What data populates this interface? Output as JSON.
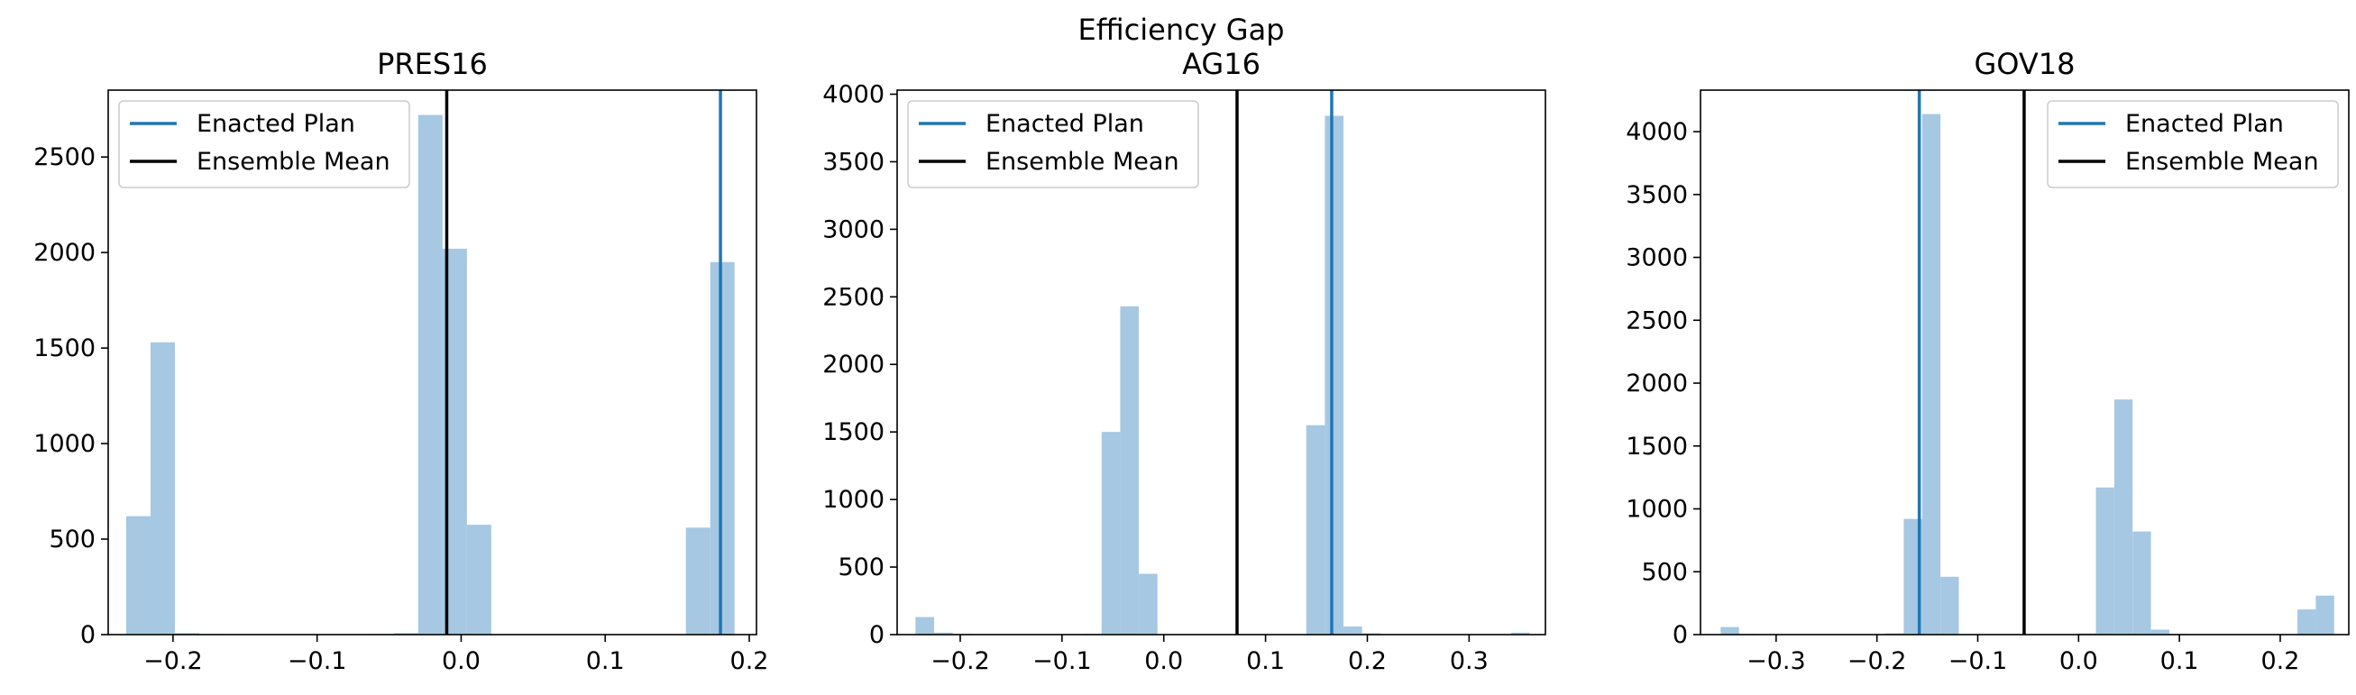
{
  "suptitle": "Efficiency Gap",
  "colors": {
    "enacted": "#1f77b4",
    "mean": "#000000",
    "hist": "#a6c8e2"
  },
  "legend": {
    "enacted_label": "Enacted Plan",
    "mean_label": "Ensemble Mean"
  },
  "chart_data": [
    {
      "type": "bar",
      "title": "PRES16",
      "xlim": [
        -0.245,
        0.205
      ],
      "ylim": [
        0,
        2850
      ],
      "xticks": [
        -0.2,
        -0.1,
        0.0,
        0.1,
        0.2
      ],
      "xtick_labels": [
        "−0.2",
        "−0.1",
        "0.0",
        "0.1",
        "0.2"
      ],
      "yticks": [
        0,
        500,
        1000,
        1500,
        2000,
        2500
      ],
      "ytick_labels": [
        "0",
        "500",
        "1000",
        "1500",
        "2000",
        "2500"
      ],
      "bin_width": 0.0169,
      "bins": [
        {
          "x": -0.2325,
          "v": 620
        },
        {
          "x": -0.2156,
          "v": 1530
        },
        {
          "x": -0.1987,
          "v": 8
        },
        {
          "x": -0.1818,
          "v": 3
        },
        {
          "x": -0.0636,
          "v": 3
        },
        {
          "x": -0.0467,
          "v": 8
        },
        {
          "x": -0.0298,
          "v": 2720
        },
        {
          "x": -0.0129,
          "v": 2020
        },
        {
          "x": 0.004,
          "v": 575
        },
        {
          "x": 0.156,
          "v": 560
        },
        {
          "x": 0.1729,
          "v": 1950
        }
      ],
      "enacted_plan": 0.18,
      "ensemble_mean": -0.01,
      "legend_position": "upper left"
    },
    {
      "type": "bar",
      "title": "AG16",
      "xlim": [
        -0.262,
        0.375
      ],
      "ylim": [
        0,
        4030
      ],
      "xticks": [
        -0.2,
        -0.1,
        0.0,
        0.1,
        0.2,
        0.3
      ],
      "xtick_labels": [
        "−0.2",
        "−0.1",
        "0.0",
        "0.1",
        "0.2",
        "0.3"
      ],
      "yticks": [
        0,
        500,
        1000,
        1500,
        2000,
        2500,
        3000,
        3500,
        4000
      ],
      "ytick_labels": [
        "0",
        "500",
        "1000",
        "1500",
        "2000",
        "2500",
        "3000",
        "3500",
        "4000"
      ],
      "bin_width": 0.0183,
      "bins": [
        {
          "x": -0.244,
          "v": 130
        },
        {
          "x": -0.2257,
          "v": 15
        },
        {
          "x": -0.2074,
          "v": 5
        },
        {
          "x": -0.0794,
          "v": 5
        },
        {
          "x": -0.0611,
          "v": 1500
        },
        {
          "x": -0.0428,
          "v": 2430
        },
        {
          "x": -0.0245,
          "v": 450
        },
        {
          "x": 0.14,
          "v": 1550
        },
        {
          "x": 0.1583,
          "v": 3840
        },
        {
          "x": 0.1766,
          "v": 60
        },
        {
          "x": 0.1949,
          "v": 10
        },
        {
          "x": 0.3412,
          "v": 15
        }
      ],
      "enacted_plan": 0.165,
      "ensemble_mean": 0.072,
      "legend_position": "upper left"
    },
    {
      "type": "bar",
      "title": "GOV18",
      "xlim": [
        -0.375,
        0.268
      ],
      "ylim": [
        0,
        4330
      ],
      "xticks": [
        -0.3,
        -0.2,
        -0.1,
        0.0,
        0.1,
        0.2
      ],
      "xtick_labels": [
        "−0.3",
        "−0.2",
        "−0.1",
        "0.0",
        "0.1",
        "0.2"
      ],
      "yticks": [
        0,
        500,
        1000,
        1500,
        2000,
        2500,
        3000,
        3500,
        4000
      ],
      "ytick_labels": [
        "0",
        "500",
        "1000",
        "1500",
        "2000",
        "2500",
        "3000",
        "3500",
        "4000"
      ],
      "bin_width": 0.0182,
      "bins": [
        {
          "x": -0.355,
          "v": 60
        },
        {
          "x": -0.3368,
          "v": 5
        },
        {
          "x": -0.1916,
          "v": 10
        },
        {
          "x": -0.1734,
          "v": 920
        },
        {
          "x": -0.1552,
          "v": 4140
        },
        {
          "x": -0.137,
          "v": 460
        },
        {
          "x": -0.001,
          "v": 10
        },
        {
          "x": 0.0172,
          "v": 1170
        },
        {
          "x": 0.0354,
          "v": 1870
        },
        {
          "x": 0.0536,
          "v": 820
        },
        {
          "x": 0.0718,
          "v": 40
        },
        {
          "x": 0.09,
          "v": 5
        },
        {
          "x": 0.2171,
          "v": 200
        },
        {
          "x": 0.2353,
          "v": 310
        }
      ],
      "enacted_plan": -0.158,
      "ensemble_mean": -0.054,
      "legend_position": "upper right"
    }
  ]
}
